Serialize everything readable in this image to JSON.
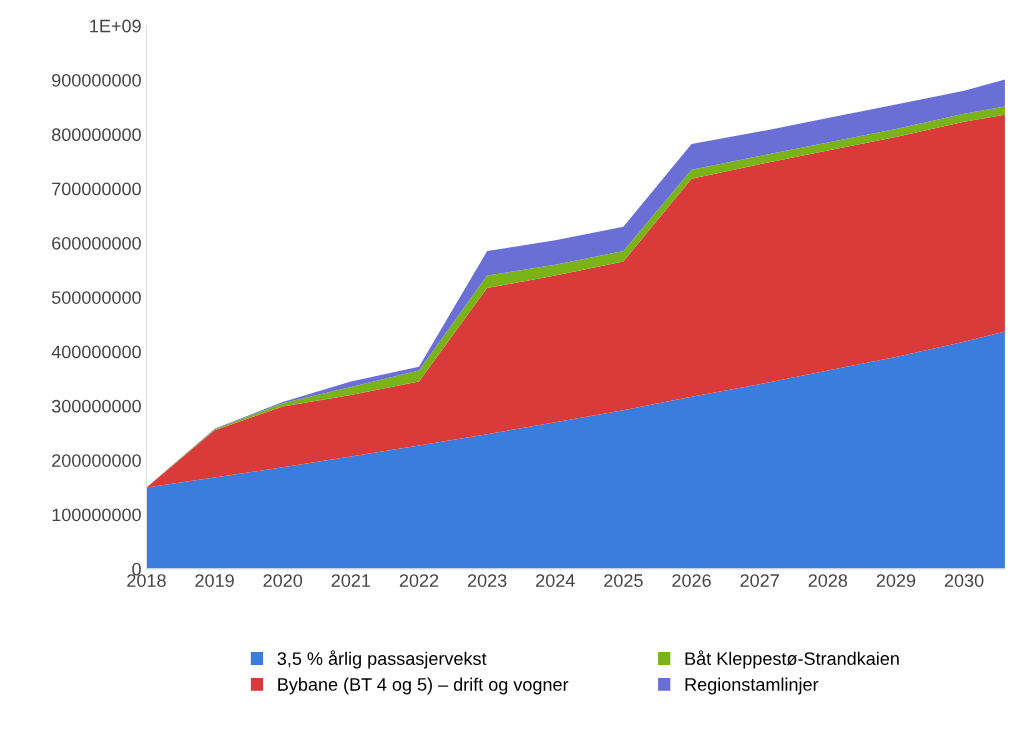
{
  "chart_data": {
    "type": "area",
    "stacked": true,
    "x": [
      2018,
      2019,
      2020,
      2021,
      2022,
      2023,
      2024,
      2025,
      2026,
      2027,
      2028,
      2029,
      2030,
      2030.6
    ],
    "series": [
      {
        "name": "3,5 % årlig passasjervekst",
        "color": "#3b7ddd",
        "values": [
          150000000,
          168000000,
          187000000,
          207000000,
          227000000,
          248000000,
          270000000,
          292000000,
          317000000,
          340000000,
          365000000,
          390000000,
          418000000,
          437000000
        ]
      },
      {
        "name": "Bybane (BT 4 og 5) – drift og vogner",
        "color": "#d93a3a",
        "values": [
          0,
          87000000,
          112000000,
          113000000,
          118000000,
          269000000,
          270000000,
          274000000,
          401000000,
          405000000,
          405000000,
          405000000,
          405000000,
          399000000
        ]
      },
      {
        "name": "Båt Kleppestø-Strandkaien",
        "color": "#7ab317",
        "values": [
          0,
          2000000,
          6000000,
          15000000,
          20000000,
          23000000,
          20000000,
          19000000,
          17000000,
          15000000,
          15000000,
          15000000,
          15000000,
          15000000
        ]
      },
      {
        "name": "Regionstamlinjer",
        "color": "#6a6fd6",
        "values": [
          0,
          1000000,
          2000000,
          10000000,
          7000000,
          45000000,
          45000000,
          45000000,
          47000000,
          45000000,
          45000000,
          45000000,
          42000000,
          50000000
        ]
      }
    ],
    "xlim": [
      2018,
      2030.6
    ],
    "xticks": [
      2018,
      2019,
      2020,
      2021,
      2022,
      2023,
      2024,
      2025,
      2026,
      2027,
      2028,
      2029,
      2030
    ],
    "ylim": [
      0,
      1000000000
    ],
    "yticks": [
      0,
      100000000,
      200000000,
      300000000,
      400000000,
      500000000,
      600000000,
      700000000,
      800000000,
      900000000,
      {
        "value": 1000000000,
        "label": "1E+09"
      }
    ],
    "grid": false,
    "legend": "bottom"
  }
}
